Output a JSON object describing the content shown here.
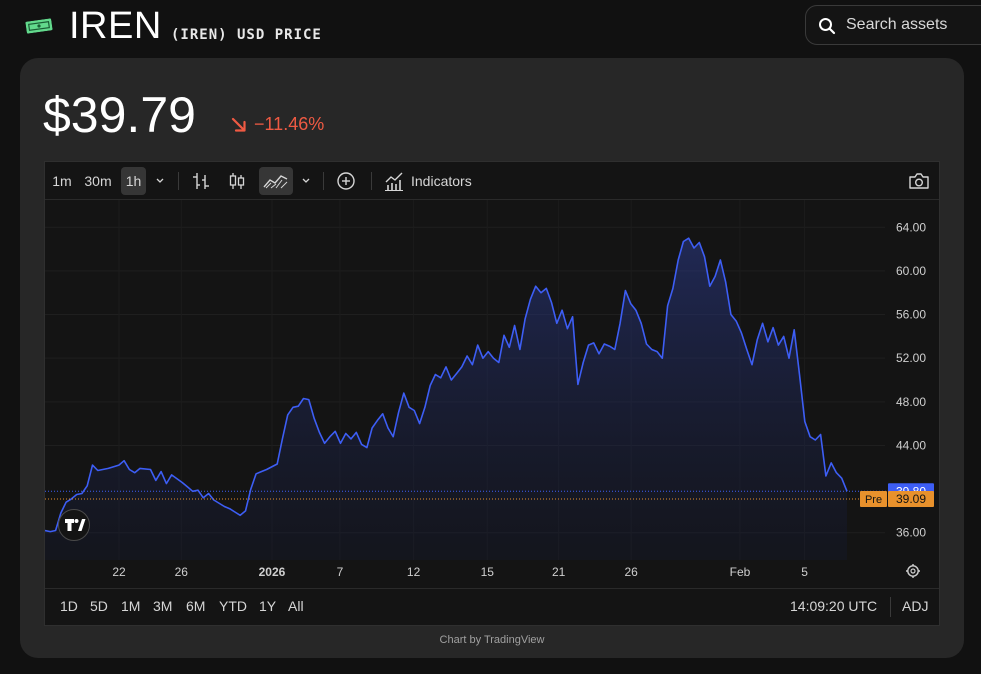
{
  "header": {
    "title": "IREN",
    "subtitle": "(IREN) USD PRICE",
    "search": {
      "placeholder": "Search assets"
    }
  },
  "quote": {
    "price": "$39.79",
    "change": "−11.46%",
    "change_color": "#ef5a43"
  },
  "toolbar": {
    "intervals": [
      "1m",
      "30m",
      "1h"
    ],
    "active_interval": "1h",
    "indicators_label": "Indicators",
    "icons": [
      "chevron-down-icon",
      "bar-chart-icon",
      "candlestick-icon",
      "area-chart-icon",
      "chevron-down-icon",
      "add-circle-icon",
      "indicators-icon",
      "camera-icon"
    ]
  },
  "bottom_bar": {
    "ranges": [
      "1D",
      "5D",
      "1M",
      "3M",
      "6M",
      "YTD",
      "1Y",
      "All"
    ],
    "time": "14:09:20 UTC",
    "adj_label": "ADJ"
  },
  "credit": "Chart by TradingView",
  "chart_data": {
    "type": "area",
    "series_color": "#3d5ef5",
    "x_ticks": [
      "22",
      "26",
      "2026",
      "7",
      "12",
      "15",
      "21",
      "26",
      "Feb",
      "5"
    ],
    "y_ticks": [
      "64.00",
      "60.00",
      "56.00",
      "52.00",
      "48.00",
      "44.00",
      "36.00"
    ],
    "ylim": [
      33.5,
      66.5
    ],
    "last_price_label": "39.80",
    "pre_label": "Pre",
    "pre_price_label": "39.09",
    "last_price": 39.8,
    "pre_price": 39.09,
    "points": [
      [
        0,
        36.2
      ],
      [
        0.5,
        36.1
      ],
      [
        1,
        36.2
      ],
      [
        1.5,
        37.8
      ],
      [
        2,
        38.8
      ],
      [
        2.5,
        39.1
      ],
      [
        3,
        39.5
      ],
      [
        3.5,
        39.6
      ],
      [
        4,
        40.3
      ],
      [
        4.5,
        42.2
      ],
      [
        5,
        41.7
      ],
      [
        6,
        41.9
      ],
      [
        7,
        42.2
      ],
      [
        7.5,
        42.6
      ],
      [
        8,
        41.8
      ],
      [
        8.5,
        41.5
      ],
      [
        9,
        41.9
      ],
      [
        10,
        41.8
      ],
      [
        10.5,
        40.8
      ],
      [
        11,
        41.6
      ],
      [
        11.5,
        40.5
      ],
      [
        12,
        41.3
      ],
      [
        13,
        40.6
      ],
      [
        13.5,
        40.2
      ],
      [
        14,
        39.8
      ],
      [
        14.5,
        39.9
      ],
      [
        15,
        39.2
      ],
      [
        15.5,
        39.6
      ],
      [
        16,
        39.0
      ],
      [
        17,
        38.4
      ],
      [
        17.5,
        38.2
      ],
      [
        18,
        37.9
      ],
      [
        18.5,
        37.6
      ],
      [
        19,
        38.0
      ],
      [
        19.5,
        40.0
      ],
      [
        20,
        41.4
      ],
      [
        20.5,
        41.6
      ],
      [
        21,
        41.8
      ],
      [
        22,
        42.3
      ],
      [
        22.5,
        44.6
      ],
      [
        23,
        46.8
      ],
      [
        23.5,
        47.5
      ],
      [
        24,
        47.6
      ],
      [
        24.5,
        48.3
      ],
      [
        25,
        48.2
      ],
      [
        25.5,
        46.5
      ],
      [
        26,
        45.2
      ],
      [
        26.5,
        44.2
      ],
      [
        27,
        44.8
      ],
      [
        27.5,
        45.3
      ],
      [
        28,
        44.2
      ],
      [
        28.5,
        45.1
      ],
      [
        29,
        44.6
      ],
      [
        29.5,
        45.2
      ],
      [
        30,
        44.1
      ],
      [
        30.5,
        43.8
      ],
      [
        31,
        45.6
      ],
      [
        31.5,
        46.3
      ],
      [
        32,
        46.9
      ],
      [
        32.5,
        45.6
      ],
      [
        33,
        44.8
      ],
      [
        33.5,
        47.0
      ],
      [
        34,
        48.8
      ],
      [
        34.5,
        47.5
      ],
      [
        35,
        47.2
      ],
      [
        35.5,
        46.0
      ],
      [
        36,
        47.5
      ],
      [
        36.5,
        49.5
      ],
      [
        37,
        50.5
      ],
      [
        37.5,
        50.2
      ],
      [
        38,
        51.2
      ],
      [
        38.5,
        50.0
      ],
      [
        39,
        50.6
      ],
      [
        39.5,
        51.2
      ],
      [
        40,
        52.2
      ],
      [
        40.5,
        51.4
      ],
      [
        41,
        53.2
      ],
      [
        41.5,
        52.0
      ],
      [
        42,
        52.6
      ],
      [
        42.5,
        52.0
      ],
      [
        43,
        51.6
      ],
      [
        43.5,
        54.1
      ],
      [
        44,
        53.0
      ],
      [
        44.5,
        55.0
      ],
      [
        45,
        52.8
      ],
      [
        45.5,
        55.6
      ],
      [
        46,
        57.4
      ],
      [
        46.5,
        58.6
      ],
      [
        47,
        58.0
      ],
      [
        47.5,
        58.4
      ],
      [
        48,
        57.1
      ],
      [
        48.5,
        55.2
      ],
      [
        49,
        56.4
      ],
      [
        49.5,
        54.7
      ],
      [
        50,
        55.8
      ],
      [
        50.5,
        49.6
      ],
      [
        51,
        51.6
      ],
      [
        51.5,
        53.2
      ],
      [
        52,
        53.4
      ],
      [
        52.5,
        52.4
      ],
      [
        53,
        53.3
      ],
      [
        53.5,
        53.1
      ],
      [
        54,
        52.8
      ],
      [
        54.5,
        55.2
      ],
      [
        55,
        58.2
      ],
      [
        55.5,
        57.0
      ],
      [
        56,
        56.4
      ],
      [
        56.5,
        55.2
      ],
      [
        57,
        53.3
      ],
      [
        57.5,
        52.8
      ],
      [
        58,
        52.6
      ],
      [
        58.5,
        52.0
      ],
      [
        59,
        56.8
      ],
      [
        59.5,
        58.4
      ],
      [
        60,
        61.0
      ],
      [
        60.5,
        62.7
      ],
      [
        61,
        63.0
      ],
      [
        61.5,
        62.1
      ],
      [
        62,
        62.6
      ],
      [
        62.5,
        61.3
      ],
      [
        63,
        58.6
      ],
      [
        63.5,
        59.5
      ],
      [
        64,
        61.0
      ],
      [
        64.5,
        59.0
      ],
      [
        65,
        56.0
      ],
      [
        65.5,
        55.4
      ],
      [
        66,
        54.3
      ],
      [
        66.5,
        52.8
      ],
      [
        67,
        51.4
      ],
      [
        67.5,
        53.7
      ],
      [
        68,
        55.2
      ],
      [
        68.5,
        53.5
      ],
      [
        69,
        54.8
      ],
      [
        69.5,
        53.2
      ],
      [
        70,
        54.0
      ],
      [
        70.5,
        52.0
      ],
      [
        71,
        54.6
      ],
      [
        71.5,
        50.5
      ],
      [
        72,
        46.2
      ],
      [
        72.5,
        44.8
      ],
      [
        73,
        44.5
      ],
      [
        73.5,
        45.0
      ],
      [
        74,
        41.2
      ],
      [
        74.5,
        42.4
      ],
      [
        75,
        41.5
      ],
      [
        75.5,
        41.0
      ],
      [
        76,
        39.8
      ]
    ]
  }
}
